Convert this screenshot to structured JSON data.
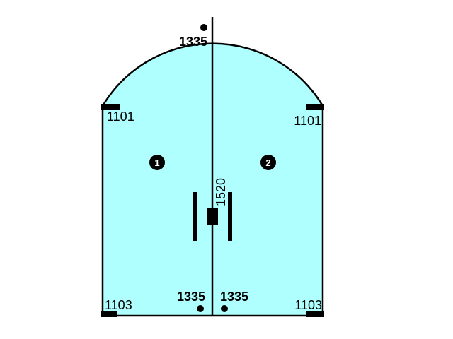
{
  "diagram": {
    "colors": {
      "glass": "#afffff",
      "outline": "#000000",
      "hardware": "#000000",
      "background": "#ffffff",
      "number_text": "#ffffff"
    },
    "panels": [
      {
        "number": "1"
      },
      {
        "number": "2"
      }
    ],
    "labels": {
      "hinge_top_left": "1101",
      "hinge_top_right": "1101",
      "hinge_bottom_left": "1103",
      "hinge_bottom_right": "1103",
      "hole_top": "1335",
      "hole_bottom_left": "1335",
      "hole_bottom_right": "1335",
      "lock": "1520"
    }
  }
}
